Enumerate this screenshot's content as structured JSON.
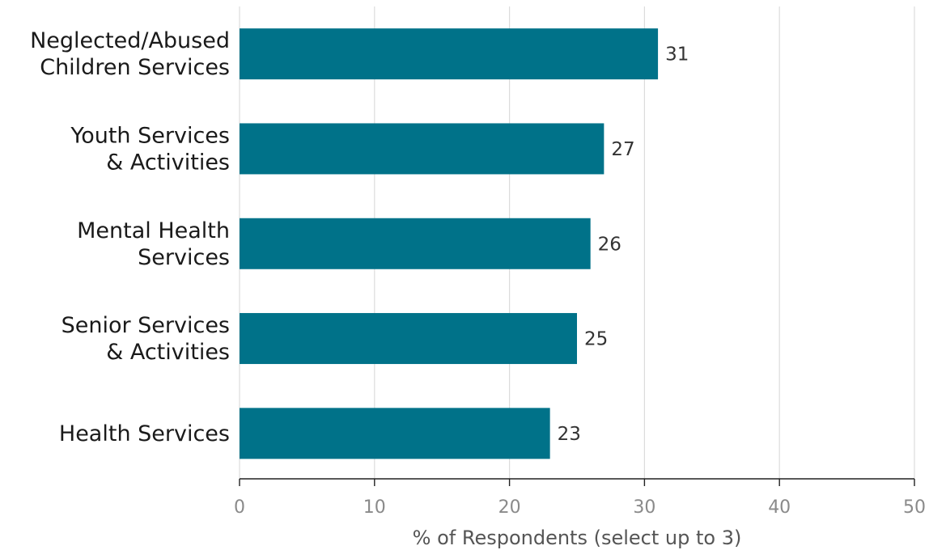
{
  "chart_data": {
    "type": "bar",
    "orientation": "horizontal",
    "categories": [
      [
        "Neglected/Abused",
        "Children Services"
      ],
      [
        "Youth Services",
        "& Activities"
      ],
      [
        "Mental Health",
        "Services"
      ],
      [
        "Senior Services",
        "& Activities"
      ],
      [
        "Health Services"
      ]
    ],
    "values": [
      31,
      27,
      26,
      25,
      23
    ],
    "value_labels": [
      "31",
      "27",
      "26",
      "25",
      "23"
    ],
    "xlabel": "% of Respondents (select up to 3)",
    "xlim": [
      0,
      50
    ],
    "xticks": [
      0,
      10,
      20,
      30,
      40,
      50
    ],
    "xtick_labels": [
      "0",
      "10",
      "20",
      "30",
      "40",
      "50"
    ],
    "grid": "vertical",
    "bar_color": "#007289",
    "data_labels": true
  }
}
